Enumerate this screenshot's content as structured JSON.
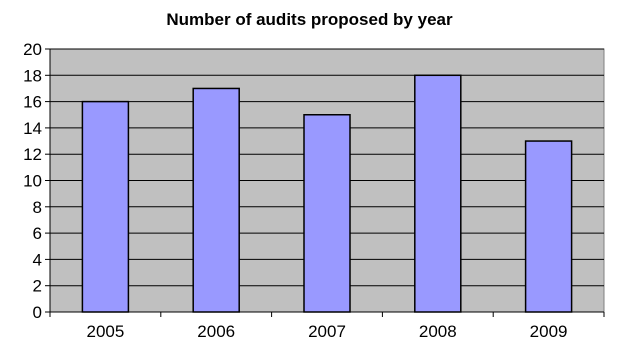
{
  "chart_data": {
    "type": "bar",
    "title": "Number of audits proposed by year",
    "xlabel": "",
    "ylabel": "",
    "categories": [
      "2005",
      "2006",
      "2007",
      "2008",
      "2009"
    ],
    "values": [
      16,
      17,
      15,
      18,
      13
    ],
    "ylim": [
      0,
      20
    ],
    "yticks": [
      0,
      2,
      4,
      6,
      8,
      10,
      12,
      14,
      16,
      18,
      20
    ],
    "grid": true,
    "legend": "none",
    "colors": {
      "bar_fill": "#9999ff",
      "bar_stroke": "#000000",
      "plot_background": "#c0c0c0",
      "gridline": "#000000"
    }
  }
}
